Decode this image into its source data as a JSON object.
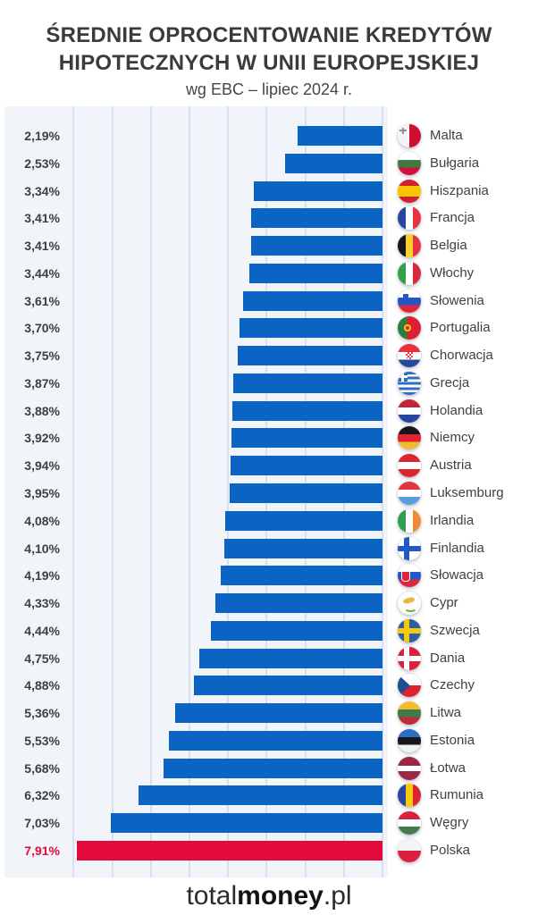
{
  "page": {
    "title_line1": "ŚREDNIE OPROCENTOWANIE KREDYTÓW",
    "title_line2": "HIPOTECZNYCH W UNII EUROPEJSKIEJ",
    "subtitle": "wg EBC – lipiec 2024 r."
  },
  "footer": {
    "light": "total",
    "bold": "money",
    "suffix": ".pl"
  },
  "colors": {
    "bar_blue": "#0b63c4",
    "highlight_red": "#e30a3c",
    "panel_bg": "#f1f5fa",
    "gridline": "#d7e0f0",
    "title_text": "#3b3b3b",
    "label_text": "#3c4046"
  },
  "chart_data": {
    "type": "bar",
    "orientation": "horizontal",
    "title": "Średnie oprocentowanie kredytów hipotecznych w Unii Europejskiej",
    "subtitle": "wg EBC – lipiec 2024 r.",
    "unit": "%",
    "value_axis": {
      "min": 0,
      "max": 8,
      "grid_step": 1,
      "zero_at": "right"
    },
    "grid": true,
    "legend_position": "right",
    "rows": [
      {
        "country": "Malta",
        "label": "2,19%",
        "value": 2.19,
        "flag": "malta",
        "highlight": false
      },
      {
        "country": "Bułgaria",
        "label": "2,53%",
        "value": 2.53,
        "flag": "bulgaria",
        "highlight": false
      },
      {
        "country": "Hiszpania",
        "label": "3,34%",
        "value": 3.34,
        "flag": "spain",
        "highlight": false
      },
      {
        "country": "Francja",
        "label": "3,41%",
        "value": 3.41,
        "flag": "france",
        "highlight": false
      },
      {
        "country": "Belgia",
        "label": "3,41%",
        "value": 3.41,
        "flag": "belgium",
        "highlight": false
      },
      {
        "country": "Włochy",
        "label": "3,44%",
        "value": 3.44,
        "flag": "italy",
        "highlight": false
      },
      {
        "country": "Słowenia",
        "label": "3,61%",
        "value": 3.61,
        "flag": "slovenia",
        "highlight": false
      },
      {
        "country": "Portugalia",
        "label": "3,70%",
        "value": 3.7,
        "flag": "portugal",
        "highlight": false
      },
      {
        "country": "Chorwacja",
        "label": "3,75%",
        "value": 3.75,
        "flag": "croatia",
        "highlight": false
      },
      {
        "country": "Grecja",
        "label": "3,87%",
        "value": 3.87,
        "flag": "greece",
        "highlight": false
      },
      {
        "country": "Holandia",
        "label": "3,88%",
        "value": 3.88,
        "flag": "netherlands",
        "highlight": false
      },
      {
        "country": "Niemcy",
        "label": "3,92%",
        "value": 3.92,
        "flag": "germany",
        "highlight": false
      },
      {
        "country": "Austria",
        "label": "3,94%",
        "value": 3.94,
        "flag": "austria",
        "highlight": false
      },
      {
        "country": "Luksemburg",
        "label": "3,95%",
        "value": 3.95,
        "flag": "luxembourg",
        "highlight": false
      },
      {
        "country": "Irlandia",
        "label": "4,08%",
        "value": 4.08,
        "flag": "ireland",
        "highlight": false
      },
      {
        "country": "Finlandia",
        "label": "4,10%",
        "value": 4.1,
        "flag": "finland",
        "highlight": false
      },
      {
        "country": "Słowacja",
        "label": "4,19%",
        "value": 4.19,
        "flag": "slovakia",
        "highlight": false
      },
      {
        "country": "Cypr",
        "label": "4,33%",
        "value": 4.33,
        "flag": "cyprus",
        "highlight": false
      },
      {
        "country": "Szwecja",
        "label": "4,44%",
        "value": 4.44,
        "flag": "sweden",
        "highlight": false
      },
      {
        "country": "Dania",
        "label": "4,75%",
        "value": 4.75,
        "flag": "denmark",
        "highlight": false
      },
      {
        "country": "Czechy",
        "label": "4,88%",
        "value": 4.88,
        "flag": "czechia",
        "highlight": false
      },
      {
        "country": "Litwa",
        "label": "5,36%",
        "value": 5.36,
        "flag": "lithuania",
        "highlight": false
      },
      {
        "country": "Estonia",
        "label": "5,53%",
        "value": 5.53,
        "flag": "estonia",
        "highlight": false
      },
      {
        "country": "Łotwa",
        "label": "5,68%",
        "value": 5.68,
        "flag": "latvia",
        "highlight": false
      },
      {
        "country": "Rumunia",
        "label": "6,32%",
        "value": 6.32,
        "flag": "romania",
        "highlight": false
      },
      {
        "country": "Węgry",
        "label": "7,03%",
        "value": 7.03,
        "flag": "hungary",
        "highlight": false
      },
      {
        "country": "Polska",
        "label": "7,91%",
        "value": 7.91,
        "flag": "poland",
        "highlight": true
      }
    ]
  }
}
